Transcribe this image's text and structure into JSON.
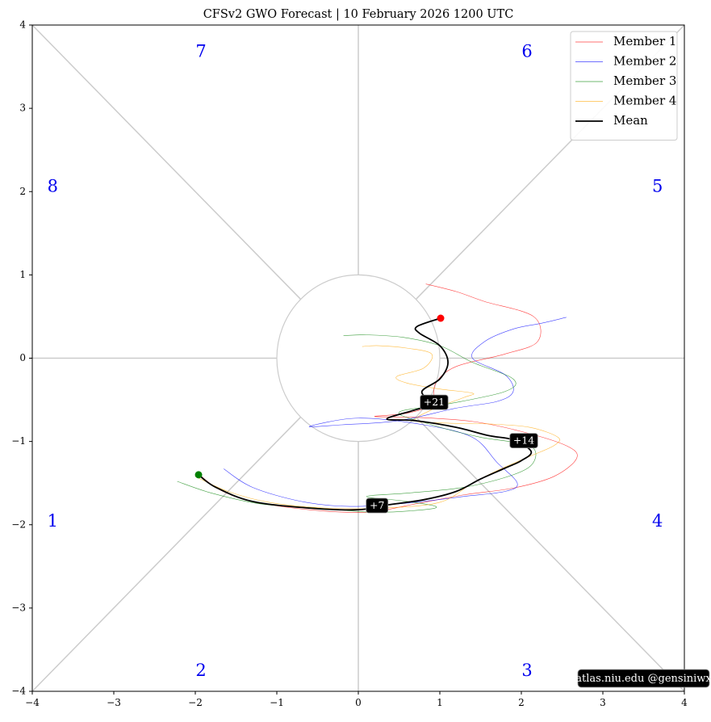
{
  "chart_data": {
    "type": "line",
    "title": "CFSv2 GWO Forecast   |   10  February  2026 1200 UTC",
    "xlim": [
      -4,
      4
    ],
    "ylim": [
      -4,
      4
    ],
    "xticks": [
      -4,
      -3,
      -2,
      -1,
      0,
      1,
      2,
      3,
      4
    ],
    "yticks": [
      -4,
      -3,
      -2,
      -1,
      0,
      1,
      2,
      3,
      4
    ],
    "tick_labels": [
      "−4",
      "−3",
      "−2",
      "−1",
      "0",
      "1",
      "2",
      "3",
      "4"
    ],
    "grid": false,
    "legend_position": "top-right",
    "phase_labels": [
      {
        "label": "1",
        "x": -3.75,
        "y": -1.97
      },
      {
        "label": "2",
        "x": -1.93,
        "y": -3.76
      },
      {
        "label": "3",
        "x": 2.07,
        "y": -3.76
      },
      {
        "label": "4",
        "x": 3.67,
        "y": -1.97
      },
      {
        "label": "5",
        "x": 3.67,
        "y": 2.05
      },
      {
        "label": "6",
        "x": 2.07,
        "y": 3.67
      },
      {
        "label": "7",
        "x": -1.93,
        "y": 3.67
      },
      {
        "label": "8",
        "x": -3.75,
        "y": 2.05
      }
    ],
    "series": [
      {
        "name": "Member 1",
        "color": "#ff0000",
        "points": [
          [
            -1.95,
            -1.4
          ],
          [
            -1.7,
            -1.58
          ],
          [
            -1.3,
            -1.72
          ],
          [
            -0.6,
            -1.82
          ],
          [
            0.1,
            -1.85
          ],
          [
            0.7,
            -1.75
          ],
          [
            1.3,
            -1.64
          ],
          [
            1.9,
            -1.56
          ],
          [
            2.4,
            -1.42
          ],
          [
            2.68,
            -1.2
          ],
          [
            2.55,
            -1.05
          ],
          [
            2.0,
            -0.88
          ],
          [
            1.4,
            -0.76
          ],
          [
            0.7,
            -0.71
          ],
          [
            0.2,
            -0.7
          ],
          [
            0.6,
            -0.66
          ],
          [
            0.9,
            -0.55
          ],
          [
            0.95,
            -0.3
          ],
          [
            1.2,
            -0.1
          ],
          [
            1.8,
            0.05
          ],
          [
            2.2,
            0.2
          ],
          [
            2.15,
            0.5
          ],
          [
            1.55,
            0.68
          ],
          [
            1.2,
            0.8
          ],
          [
            0.83,
            0.89
          ]
        ]
      },
      {
        "name": "Member 2",
        "color": "#0000ff",
        "points": [
          [
            -1.65,
            -1.33
          ],
          [
            -1.3,
            -1.55
          ],
          [
            -0.7,
            -1.72
          ],
          [
            -0.1,
            -1.78
          ],
          [
            0.6,
            -1.74
          ],
          [
            1.3,
            -1.66
          ],
          [
            1.8,
            -1.6
          ],
          [
            1.95,
            -1.5
          ],
          [
            1.7,
            -1.25
          ],
          [
            1.4,
            -0.95
          ],
          [
            0.8,
            -0.8
          ],
          [
            0.0,
            -0.72
          ],
          [
            -0.6,
            -0.82
          ],
          [
            -0.2,
            -0.8
          ],
          [
            0.5,
            -0.75
          ],
          [
            1.2,
            -0.6
          ],
          [
            1.7,
            -0.52
          ],
          [
            1.9,
            -0.4
          ],
          [
            1.8,
            -0.2
          ],
          [
            1.4,
            0.0
          ],
          [
            1.55,
            0.2
          ],
          [
            1.9,
            0.35
          ],
          [
            2.25,
            0.42
          ],
          [
            2.55,
            0.49
          ]
        ]
      },
      {
        "name": "Member 3",
        "color": "#008000",
        "points": [
          [
            -2.22,
            -1.48
          ],
          [
            -1.8,
            -1.62
          ],
          [
            -1.2,
            -1.75
          ],
          [
            -0.5,
            -1.8
          ],
          [
            0.2,
            -1.85
          ],
          [
            0.8,
            -1.82
          ],
          [
            0.95,
            -1.78
          ],
          [
            0.6,
            -1.72
          ],
          [
            0.1,
            -1.66
          ],
          [
            0.6,
            -1.62
          ],
          [
            1.3,
            -1.55
          ],
          [
            1.9,
            -1.4
          ],
          [
            2.15,
            -1.25
          ],
          [
            2.1,
            -1.05
          ],
          [
            1.5,
            -0.95
          ],
          [
            0.9,
            -0.8
          ],
          [
            0.5,
            -0.65
          ],
          [
            1.1,
            -0.55
          ],
          [
            1.8,
            -0.4
          ],
          [
            1.9,
            -0.25
          ],
          [
            1.4,
            -0.05
          ],
          [
            1.0,
            0.15
          ],
          [
            0.55,
            0.25
          ],
          [
            0.1,
            0.28
          ],
          [
            -0.18,
            0.27
          ]
        ]
      },
      {
        "name": "Member 4",
        "color": "#ffa500",
        "points": [
          [
            -2.0,
            -1.42
          ],
          [
            -1.6,
            -1.6
          ],
          [
            -1.1,
            -1.73
          ],
          [
            -0.4,
            -1.8
          ],
          [
            0.3,
            -1.8
          ],
          [
            1.0,
            -1.73
          ],
          [
            1.4,
            -1.5
          ],
          [
            1.7,
            -1.35
          ],
          [
            2.1,
            -1.18
          ],
          [
            2.4,
            -1.05
          ],
          [
            2.45,
            -0.95
          ],
          [
            2.1,
            -0.83
          ],
          [
            1.6,
            -0.79
          ],
          [
            1.1,
            -0.78
          ],
          [
            0.7,
            -0.75
          ],
          [
            0.9,
            -0.62
          ],
          [
            1.3,
            -0.47
          ],
          [
            1.4,
            -0.42
          ],
          [
            1.0,
            -0.37
          ],
          [
            0.6,
            -0.3
          ],
          [
            0.47,
            -0.22
          ],
          [
            0.8,
            -0.12
          ],
          [
            0.9,
            0.05
          ],
          [
            0.6,
            0.12
          ],
          [
            0.25,
            0.15
          ],
          [
            0.05,
            0.14
          ]
        ]
      },
      {
        "name": "Mean",
        "color": "#000000",
        "points": [
          [
            -1.96,
            -1.4
          ],
          [
            -1.75,
            -1.55
          ],
          [
            -1.3,
            -1.72
          ],
          [
            -0.6,
            -1.8
          ],
          [
            0.0,
            -1.82
          ],
          [
            0.3,
            -1.77
          ],
          [
            0.8,
            -1.7
          ],
          [
            1.2,
            -1.6
          ],
          [
            1.5,
            -1.45
          ],
          [
            1.8,
            -1.32
          ],
          [
            2.0,
            -1.23
          ],
          [
            2.12,
            -1.12
          ],
          [
            1.9,
            -0.98
          ],
          [
            1.6,
            -0.93
          ],
          [
            1.2,
            -0.83
          ],
          [
            0.7,
            -0.75
          ],
          [
            0.35,
            -0.73
          ],
          [
            0.7,
            -0.62
          ],
          [
            0.9,
            -0.55
          ],
          [
            0.78,
            -0.4
          ],
          [
            1.0,
            -0.25
          ],
          [
            1.1,
            -0.05
          ],
          [
            1.0,
            0.15
          ],
          [
            0.75,
            0.3
          ],
          [
            0.72,
            0.38
          ],
          [
            1.01,
            0.48
          ]
        ]
      }
    ],
    "start_point": {
      "x": -1.96,
      "y": -1.4,
      "color": "#008000"
    },
    "end_point": {
      "x": 1.01,
      "y": 0.48,
      "color": "#ff0000"
    },
    "day_markers": [
      {
        "label": "+7",
        "x": 0.23,
        "y": -1.77
      },
      {
        "label": "+14",
        "x": 2.03,
        "y": -0.99
      },
      {
        "label": "+21",
        "x": 0.93,
        "y": -0.53
      }
    ],
    "credit": "atlas.niu.edu  @gensiniwx"
  }
}
